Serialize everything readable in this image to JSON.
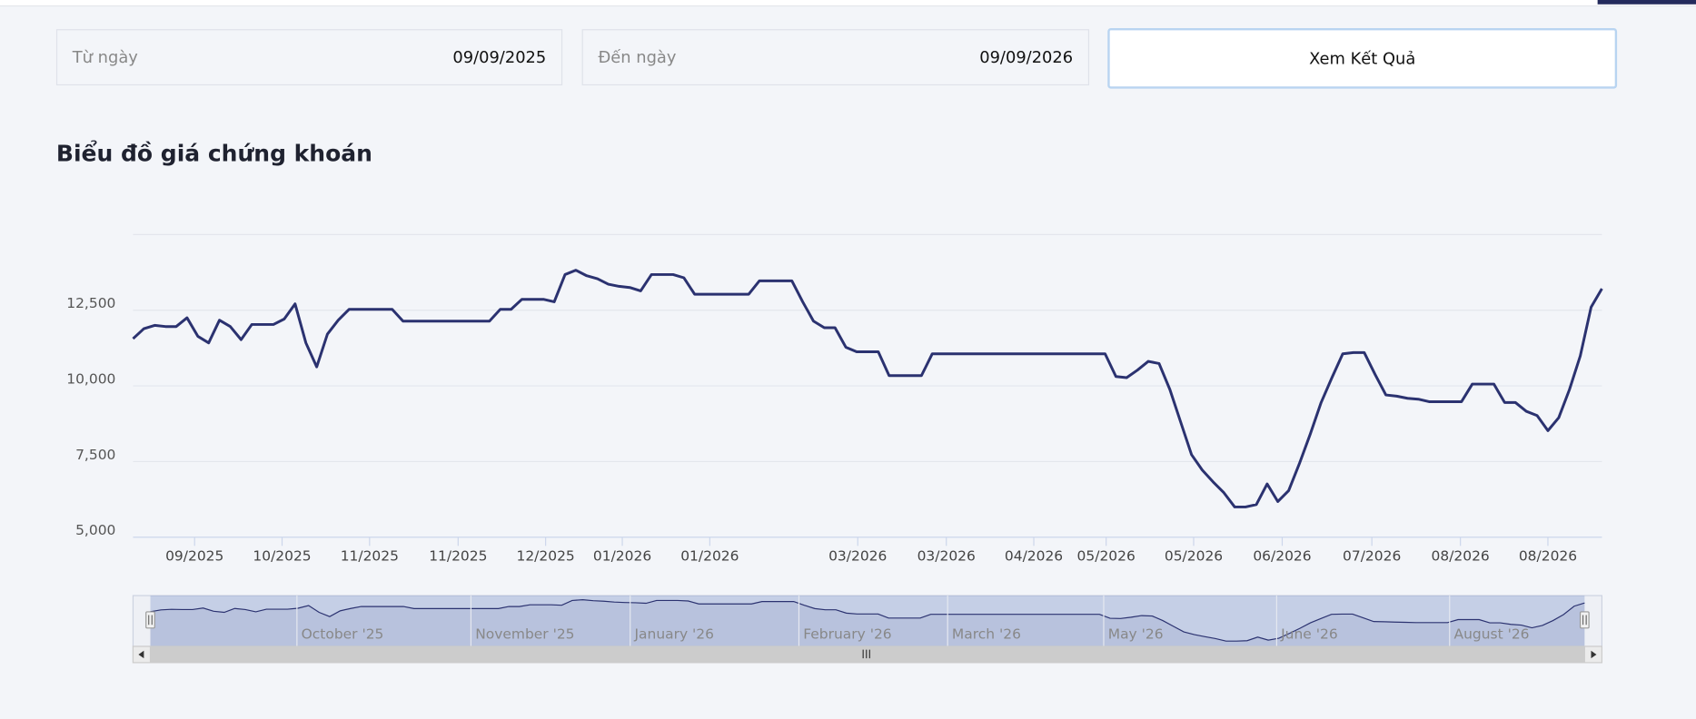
{
  "filters": {
    "from": {
      "label": "Từ ngày",
      "value": "09/09/2025"
    },
    "to": {
      "label": "Đến ngày",
      "value": "09/09/2026"
    }
  },
  "button": "Xem Kết Quả",
  "chart_data": {
    "type": "line",
    "title": "Biểu đồ giá chứng khoán",
    "series": [
      {
        "color": "#2b3270",
        "values": [
          11560,
          11890,
          12000,
          11960,
          11960,
          12250,
          11640,
          11420,
          12170,
          11960,
          11530,
          12030,
          12030,
          12030,
          12210,
          12710,
          11420,
          10630,
          11710,
          12170,
          12530,
          12530,
          12530,
          12530,
          12530,
          12140,
          12140,
          12140,
          12140,
          12140,
          12140,
          12140,
          12140,
          12140,
          12530,
          12530,
          12860,
          12860,
          12860,
          12780,
          13680,
          13820,
          13640,
          13540,
          13360,
          13290,
          13250,
          13140,
          13680,
          13680,
          13680,
          13570,
          13030,
          13030,
          13030,
          13030,
          13030,
          13030,
          13470,
          13470,
          13470,
          13470,
          12780,
          12140,
          11920,
          11920,
          11280,
          11130,
          11130,
          11130,
          10340,
          10340,
          10340,
          10340,
          11060,
          11060,
          11060,
          11060,
          11060,
          11060,
          11060,
          11060,
          11060,
          11060,
          11060,
          11060,
          11060,
          11060,
          11060,
          11060,
          11060,
          10310,
          10270,
          10520,
          10810,
          10740,
          9880,
          8800,
          7730,
          7220,
          6830,
          6470,
          6000,
          6000,
          6080,
          6760,
          6180,
          6540,
          7440,
          8410,
          9450,
          10270,
          11060,
          11100,
          11100,
          10380,
          9700,
          9660,
          9590,
          9560,
          9480,
          9480,
          9480,
          9480,
          10060,
          10060,
          10060,
          9450,
          9450,
          9160,
          9020,
          8520,
          8950,
          9880,
          10990,
          12600,
          13210
        ]
      }
    ],
    "xlim": [
      0,
      136
    ],
    "xticks": [
      {
        "value": 5.7,
        "label": "09/2025"
      },
      {
        "value": 13.8,
        "label": "10/2025"
      },
      {
        "value": 21.9,
        "label": "11/2025"
      },
      {
        "value": 30.1,
        "label": "11/2025"
      },
      {
        "value": 38.2,
        "label": "12/2025"
      },
      {
        "value": 45.3,
        "label": "01/2026"
      },
      {
        "value": 53.4,
        "label": "01/2026"
      },
      {
        "value": 67.1,
        "label": "03/2026"
      },
      {
        "value": 75.3,
        "label": "03/2026"
      },
      {
        "value": 83.4,
        "label": "04/2026"
      },
      {
        "value": 90.1,
        "label": "05/2026"
      },
      {
        "value": 98.2,
        "label": "05/2026"
      },
      {
        "value": 106.4,
        "label": "06/2026"
      },
      {
        "value": 114.7,
        "label": "07/2026"
      },
      {
        "value": 122.9,
        "label": "08/2026"
      },
      {
        "value": 131,
        "label": "08/2026"
      }
    ],
    "ylim": [
      5000,
      15000
    ],
    "yticks": [
      {
        "value": 5000,
        "label": "5,000"
      },
      {
        "value": 7500,
        "label": "7,500"
      },
      {
        "value": 10000,
        "label": "10,000"
      },
      {
        "value": 12500,
        "label": "12,500"
      }
    ],
    "grid": true,
    "navigator": {
      "xticks": [
        {
          "value": 13.9,
          "label": "October '25"
        },
        {
          "value": 30.4,
          "label": "November '25"
        },
        {
          "value": 45.5,
          "label": "January '26"
        },
        {
          "value": 61.5,
          "label": "February '26"
        },
        {
          "value": 75.6,
          "label": "March '26"
        },
        {
          "value": 90.4,
          "label": "May '26"
        },
        {
          "value": 106.8,
          "label": "June '26"
        },
        {
          "value": 123.2,
          "label": "August '26"
        }
      ]
    }
  }
}
